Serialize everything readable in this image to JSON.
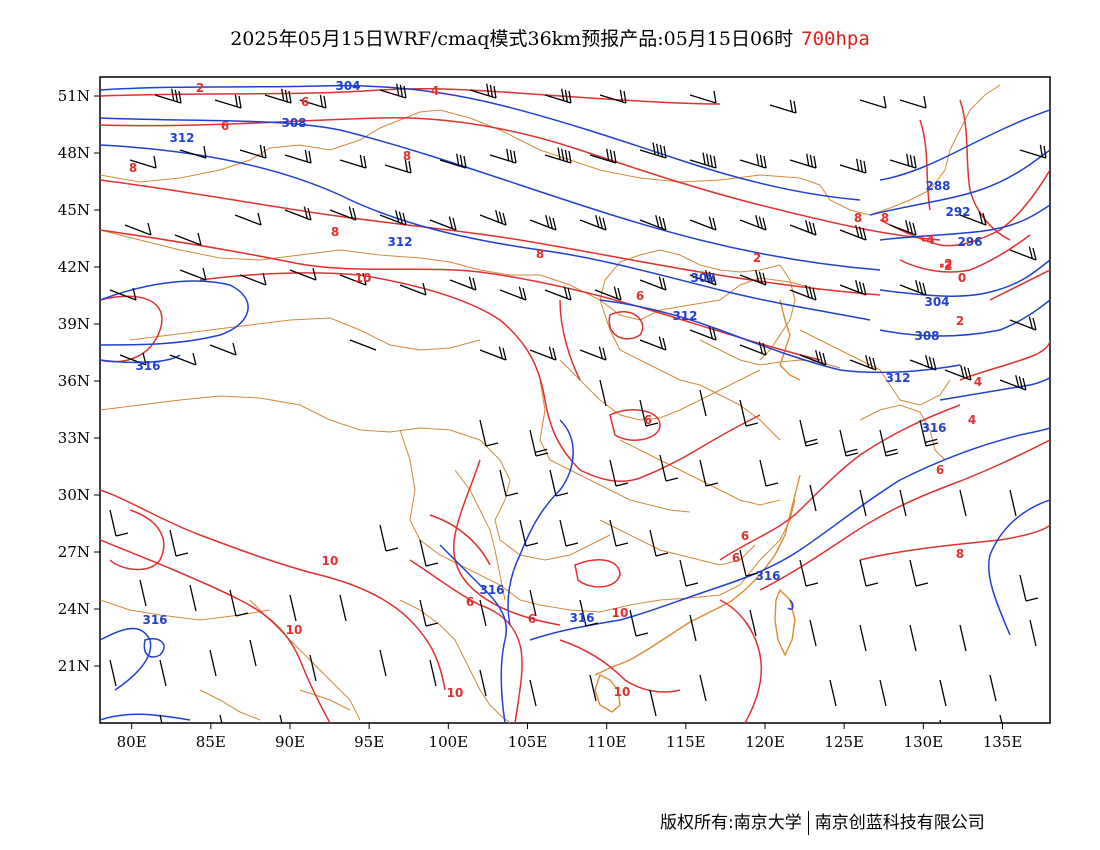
{
  "title": {
    "main": "2025年05月15日WRF/cmaq模式36km预报产品:05月15日06时",
    "level": "700hpa"
  },
  "colors": {
    "temperature_contour": "#e03030",
    "height_contour": "#2040d0",
    "boundary": "#d08a3a",
    "wind_barb": "#000000"
  },
  "map": {
    "lon_range": [
      78,
      138
    ],
    "lat_range": [
      18,
      52
    ],
    "x_ticks": [
      "80E",
      "85E",
      "90E",
      "95E",
      "100E",
      "105E",
      "110E",
      "115E",
      "120E",
      "125E",
      "130E",
      "135E"
    ],
    "x_tick_values": [
      80,
      85,
      90,
      95,
      100,
      105,
      110,
      115,
      120,
      125,
      130,
      135
    ],
    "y_ticks": [
      "51N",
      "48N",
      "45N",
      "42N",
      "39N",
      "36N",
      "33N",
      "30N",
      "27N",
      "24N",
      "21N"
    ],
    "y_tick_values": [
      51,
      48,
      45,
      42,
      39,
      36,
      33,
      30,
      27,
      24,
      21
    ],
    "temperature_labels": [
      "2",
      "4",
      "6",
      "6",
      "8",
      "8",
      "8",
      "8",
      "10",
      "10",
      "10",
      "10",
      "10",
      "10",
      "6",
      "6",
      "6",
      "6",
      "6",
      "6",
      "8",
      "8",
      "-4",
      "-2",
      "0",
      "2",
      "2",
      "4",
      "4",
      "-2",
      "6",
      "8"
    ],
    "height_labels": [
      "304",
      "308",
      "312",
      "312",
      "308",
      "312",
      "316",
      "316",
      "316",
      "316",
      "316",
      "316",
      "292",
      "296",
      "288",
      "304",
      "308",
      "312"
    ]
  },
  "footer": {
    "copyright": "版权所有:南京大学",
    "company": "南京创蓝科技有限公司"
  }
}
